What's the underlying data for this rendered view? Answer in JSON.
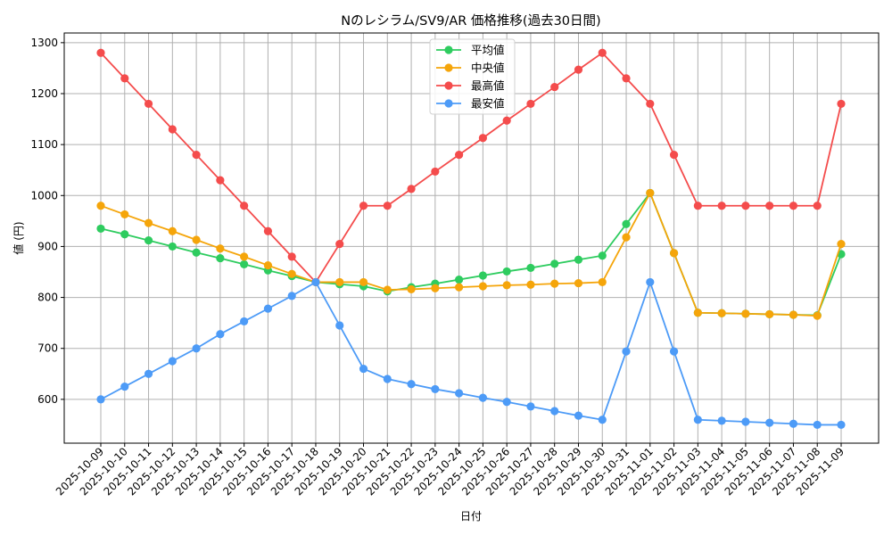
{
  "chart_data": {
    "type": "line",
    "title": "Nのレシラム/SV9/AR 価格推移(過去30日間)",
    "xlabel": "日付",
    "ylabel": "値 (円)",
    "ylim": [
      514,
      1319
    ],
    "yticks": [
      600,
      700,
      800,
      900,
      1000,
      1100,
      1200,
      1300
    ],
    "grid": true,
    "legend_position": "upper center",
    "x": [
      "2025-10-09",
      "2025-10-10",
      "2025-10-11",
      "2025-10-12",
      "2025-10-13",
      "2025-10-14",
      "2025-10-15",
      "2025-10-16",
      "2025-10-17",
      "2025-10-18",
      "2025-10-19",
      "2025-10-20",
      "2025-10-21",
      "2025-10-22",
      "2025-10-23",
      "2025-10-24",
      "2025-10-25",
      "2025-10-26",
      "2025-10-27",
      "2025-10-28",
      "2025-10-29",
      "2025-10-30",
      "2025-10-31",
      "2025-11-01",
      "2025-11-02",
      "2025-11-03",
      "2025-11-04",
      "2025-11-05",
      "2025-11-06",
      "2025-11-07",
      "2025-11-08",
      "2025-11-09"
    ],
    "series": [
      {
        "name": "平均値",
        "color": "#2ecc5f",
        "values": [
          935,
          924,
          912,
          900,
          888,
          877,
          865,
          853,
          842,
          830,
          826,
          822,
          812,
          820,
          827,
          835,
          843,
          851,
          858,
          866,
          874,
          882,
          944,
          1005,
          887,
          770,
          769,
          768,
          767,
          766,
          765,
          885
        ]
      },
      {
        "name": "中央値",
        "color": "#f5a50a",
        "values": [
          980,
          963,
          946,
          930,
          913,
          896,
          880,
          863,
          846,
          830,
          830,
          830,
          815,
          816,
          818,
          820,
          822,
          824,
          825,
          827,
          828,
          830,
          918,
          1005,
          887,
          770,
          769,
          768,
          767,
          766,
          764,
          905
        ]
      },
      {
        "name": "最高値",
        "color": "#f44c4c",
        "values": [
          1280,
          1230,
          1180,
          1130,
          1080,
          1030,
          980,
          930,
          880,
          830,
          905,
          980,
          980,
          1013,
          1047,
          1080,
          1113,
          1147,
          1180,
          1213,
          1247,
          1280,
          1230,
          1180,
          1080,
          980,
          980,
          980,
          980,
          980,
          980,
          1180
        ]
      },
      {
        "name": "最安値",
        "color": "#4d9bf7",
        "values": [
          600,
          625,
          650,
          675,
          700,
          728,
          753,
          778,
          803,
          830,
          745,
          660,
          640,
          630,
          620,
          612,
          603,
          595,
          586,
          577,
          568,
          560,
          694,
          830,
          694,
          560,
          558,
          556,
          554,
          552,
          550,
          550
        ]
      }
    ]
  }
}
